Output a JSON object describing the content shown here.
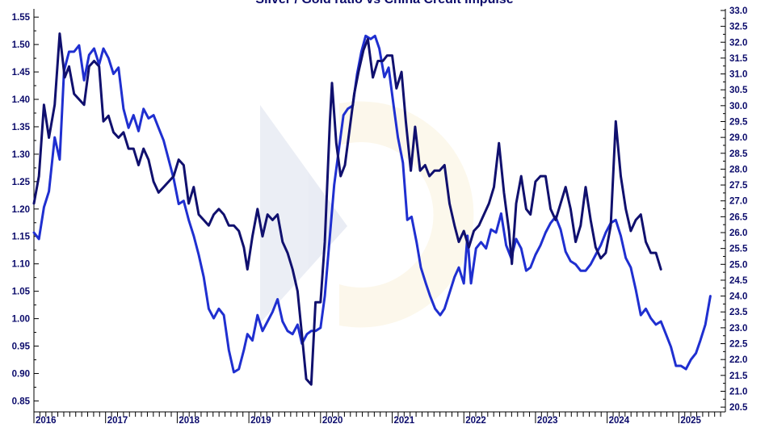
{
  "chart_data": {
    "type": "line",
    "title": "Silver / Gold ratio vs China Credit Impulse",
    "x": {
      "tick_labels": [
        "2016",
        "2017",
        "2018",
        "2019",
        "2020",
        "2021",
        "2022",
        "2023",
        "2024",
        "2025"
      ],
      "range": [
        2016.0,
        2025.65
      ]
    },
    "y_left": {
      "range": [
        0.83,
        1.565
      ],
      "ticks": [
        0.85,
        0.9,
        0.95,
        1.0,
        1.05,
        1.1,
        1.15,
        1.2,
        1.25,
        1.3,
        1.35,
        1.4,
        1.45,
        1.5,
        1.55
      ],
      "tick_labels": [
        "0.85",
        "0.90",
        "0.95",
        "1.00",
        "1.05",
        "1.10",
        "1.15",
        "1.20",
        "1.25",
        "1.30",
        "1.35",
        "1.40",
        "1.45",
        "1.50",
        "1.55"
      ]
    },
    "y_right": {
      "range": [
        20.35,
        33.05
      ],
      "ticks": [
        20.5,
        21.0,
        21.5,
        22.0,
        22.5,
        23.0,
        23.5,
        24.0,
        24.5,
        25.0,
        25.5,
        26.0,
        26.5,
        27.0,
        27.5,
        28.0,
        28.5,
        29.0,
        29.5,
        30.0,
        30.5,
        31.0,
        31.5,
        32.0,
        32.5,
        33.0
      ],
      "tick_labels": [
        "20.5",
        "21.0",
        "21.5",
        "22.0",
        "22.5",
        "23.0",
        "23.5",
        "24.0",
        "24.5",
        "25.0",
        "25.5",
        "26.0",
        "26.5",
        "27.0",
        "27.5",
        "28.0",
        "28.5",
        "29.0",
        "29.5",
        "30.0",
        "30.5",
        "31.0",
        "31.5",
        "32.0",
        "32.5",
        "33.0"
      ]
    },
    "grid": false,
    "legend": "none",
    "series": [
      {
        "axis": "left",
        "color": "#10106e",
        "points": [
          [
            2016.0,
            1.21
          ],
          [
            2016.07,
            1.26
          ],
          [
            2016.14,
            1.39
          ],
          [
            2016.21,
            1.33
          ],
          [
            2016.29,
            1.39
          ],
          [
            2016.36,
            1.52
          ],
          [
            2016.43,
            1.44
          ],
          [
            2016.49,
            1.46
          ],
          [
            2016.56,
            1.41
          ],
          [
            2016.63,
            1.4
          ],
          [
            2016.7,
            1.39
          ],
          [
            2016.77,
            1.46
          ],
          [
            2016.84,
            1.47
          ],
          [
            2016.91,
            1.46
          ],
          [
            2016.97,
            1.36
          ],
          [
            2017.04,
            1.37
          ],
          [
            2017.11,
            1.34
          ],
          [
            2017.18,
            1.33
          ],
          [
            2017.25,
            1.34
          ],
          [
            2017.32,
            1.31
          ],
          [
            2017.39,
            1.31
          ],
          [
            2017.46,
            1.28
          ],
          [
            2017.53,
            1.31
          ],
          [
            2017.6,
            1.29
          ],
          [
            2017.67,
            1.25
          ],
          [
            2017.74,
            1.23
          ],
          [
            2017.81,
            1.24
          ],
          [
            2017.88,
            1.25
          ],
          [
            2017.95,
            1.26
          ],
          [
            2018.02,
            1.29
          ],
          [
            2018.09,
            1.28
          ],
          [
            2018.16,
            1.21
          ],
          [
            2018.23,
            1.24
          ],
          [
            2018.3,
            1.19
          ],
          [
            2018.37,
            1.18
          ],
          [
            2018.44,
            1.17
          ],
          [
            2018.51,
            1.19
          ],
          [
            2018.58,
            1.2
          ],
          [
            2018.65,
            1.19
          ],
          [
            2018.72,
            1.17
          ],
          [
            2018.79,
            1.17
          ],
          [
            2018.86,
            1.16
          ],
          [
            2018.93,
            1.13
          ],
          [
            2018.98,
            1.09
          ],
          [
            2019.05,
            1.15
          ],
          [
            2019.12,
            1.2
          ],
          [
            2019.19,
            1.15
          ],
          [
            2019.26,
            1.19
          ],
          [
            2019.33,
            1.18
          ],
          [
            2019.4,
            1.19
          ],
          [
            2019.47,
            1.14
          ],
          [
            2019.54,
            1.12
          ],
          [
            2019.61,
            1.09
          ],
          [
            2019.68,
            1.05
          ],
          [
            2019.74,
            0.97
          ],
          [
            2019.8,
            0.89
          ],
          [
            2019.87,
            0.88
          ],
          [
            2019.93,
            1.03
          ],
          [
            2020.0,
            1.03
          ],
          [
            2020.06,
            1.14
          ],
          [
            2020.13,
            1.36
          ],
          [
            2020.16,
            1.43
          ],
          [
            2020.22,
            1.32
          ],
          [
            2020.28,
            1.26
          ],
          [
            2020.34,
            1.28
          ],
          [
            2020.41,
            1.35
          ],
          [
            2020.47,
            1.41
          ],
          [
            2020.53,
            1.45
          ],
          [
            2020.6,
            1.49
          ],
          [
            2020.66,
            1.51
          ],
          [
            2020.73,
            1.44
          ],
          [
            2020.8,
            1.47
          ],
          [
            2020.87,
            1.47
          ],
          [
            2020.93,
            1.48
          ],
          [
            2021.0,
            1.48
          ],
          [
            2021.06,
            1.42
          ],
          [
            2021.13,
            1.45
          ],
          [
            2021.19,
            1.36
          ],
          [
            2021.26,
            1.27
          ],
          [
            2021.32,
            1.35
          ],
          [
            2021.39,
            1.27
          ],
          [
            2021.46,
            1.28
          ],
          [
            2021.52,
            1.26
          ],
          [
            2021.59,
            1.27
          ],
          [
            2021.66,
            1.27
          ],
          [
            2021.73,
            1.28
          ],
          [
            2021.8,
            1.21
          ],
          [
            2021.87,
            1.17
          ],
          [
            2021.93,
            1.14
          ],
          [
            2022.0,
            1.16
          ],
          [
            2022.07,
            1.13
          ],
          [
            2022.14,
            1.16
          ],
          [
            2022.21,
            1.17
          ],
          [
            2022.28,
            1.19
          ],
          [
            2022.35,
            1.21
          ],
          [
            2022.42,
            1.24
          ],
          [
            2022.49,
            1.32
          ],
          [
            2022.56,
            1.23
          ],
          [
            2022.63,
            1.16
          ],
          [
            2022.67,
            1.1
          ],
          [
            2022.73,
            1.21
          ],
          [
            2022.8,
            1.26
          ],
          [
            2022.87,
            1.2
          ],
          [
            2022.93,
            1.19
          ],
          [
            2023.0,
            1.25
          ],
          [
            2023.07,
            1.26
          ],
          [
            2023.14,
            1.26
          ],
          [
            2023.21,
            1.2
          ],
          [
            2023.28,
            1.18
          ],
          [
            2023.35,
            1.21
          ],
          [
            2023.42,
            1.24
          ],
          [
            2023.49,
            1.2
          ],
          [
            2023.56,
            1.14
          ],
          [
            2023.63,
            1.17
          ],
          [
            2023.7,
            1.24
          ],
          [
            2023.77,
            1.18
          ],
          [
            2023.84,
            1.13
          ],
          [
            2023.91,
            1.11
          ],
          [
            2023.98,
            1.12
          ],
          [
            2024.05,
            1.17
          ],
          [
            2024.12,
            1.36
          ],
          [
            2024.19,
            1.26
          ],
          [
            2024.26,
            1.2
          ],
          [
            2024.33,
            1.16
          ],
          [
            2024.4,
            1.18
          ],
          [
            2024.47,
            1.19
          ],
          [
            2024.54,
            1.14
          ],
          [
            2024.61,
            1.12
          ],
          [
            2024.68,
            1.12
          ],
          [
            2024.75,
            1.09
          ]
        ]
      },
      {
        "axis": "right",
        "color": "#1f2fd0",
        "points": [
          [
            2016.0,
            26.0
          ],
          [
            2016.07,
            25.8
          ],
          [
            2016.14,
            26.8
          ],
          [
            2016.21,
            27.3
          ],
          [
            2016.29,
            29.0
          ],
          [
            2016.36,
            28.3
          ],
          [
            2016.42,
            31.1
          ],
          [
            2016.49,
            31.7
          ],
          [
            2016.56,
            31.7
          ],
          [
            2016.63,
            31.9
          ],
          [
            2016.7,
            30.8
          ],
          [
            2016.77,
            31.6
          ],
          [
            2016.84,
            31.8
          ],
          [
            2016.91,
            31.3
          ],
          [
            2016.97,
            31.8
          ],
          [
            2017.04,
            31.5
          ],
          [
            2017.11,
            31.0
          ],
          [
            2017.18,
            31.2
          ],
          [
            2017.25,
            29.9
          ],
          [
            2017.32,
            29.3
          ],
          [
            2017.39,
            29.7
          ],
          [
            2017.46,
            29.2
          ],
          [
            2017.53,
            29.9
          ],
          [
            2017.6,
            29.6
          ],
          [
            2017.67,
            29.7
          ],
          [
            2017.74,
            29.3
          ],
          [
            2017.81,
            28.9
          ],
          [
            2017.88,
            28.3
          ],
          [
            2017.95,
            27.7
          ],
          [
            2018.02,
            26.9
          ],
          [
            2018.09,
            27.0
          ],
          [
            2018.16,
            26.4
          ],
          [
            2018.23,
            25.9
          ],
          [
            2018.3,
            25.3
          ],
          [
            2018.37,
            24.6
          ],
          [
            2018.44,
            23.6
          ],
          [
            2018.51,
            23.3
          ],
          [
            2018.58,
            23.6
          ],
          [
            2018.65,
            23.4
          ],
          [
            2018.72,
            22.3
          ],
          [
            2018.79,
            21.6
          ],
          [
            2018.86,
            21.7
          ],
          [
            2018.93,
            22.3
          ],
          [
            2018.98,
            22.8
          ],
          [
            2019.05,
            22.6
          ],
          [
            2019.12,
            23.4
          ],
          [
            2019.19,
            22.9
          ],
          [
            2019.26,
            23.2
          ],
          [
            2019.33,
            23.5
          ],
          [
            2019.4,
            23.9
          ],
          [
            2019.47,
            23.2
          ],
          [
            2019.54,
            22.9
          ],
          [
            2019.61,
            22.8
          ],
          [
            2019.68,
            23.1
          ],
          [
            2019.74,
            22.5
          ],
          [
            2019.81,
            22.8
          ],
          [
            2019.87,
            22.9
          ],
          [
            2019.93,
            22.9
          ],
          [
            2020.0,
            23.0
          ],
          [
            2020.06,
            24.0
          ],
          [
            2020.13,
            25.9
          ],
          [
            2020.19,
            27.5
          ],
          [
            2020.26,
            28.7
          ],
          [
            2020.32,
            29.7
          ],
          [
            2020.38,
            29.9
          ],
          [
            2020.45,
            30.0
          ],
          [
            2020.51,
            31.0
          ],
          [
            2020.57,
            31.7
          ],
          [
            2020.63,
            32.2
          ],
          [
            2020.7,
            32.1
          ],
          [
            2020.76,
            32.2
          ],
          [
            2020.82,
            31.8
          ],
          [
            2020.89,
            30.9
          ],
          [
            2020.95,
            31.2
          ],
          [
            2021.02,
            30.0
          ],
          [
            2021.08,
            29.0
          ],
          [
            2021.15,
            28.2
          ],
          [
            2021.21,
            26.4
          ],
          [
            2021.27,
            26.5
          ],
          [
            2021.34,
            25.7
          ],
          [
            2021.4,
            24.9
          ],
          [
            2021.47,
            24.4
          ],
          [
            2021.53,
            24.0
          ],
          [
            2021.6,
            23.6
          ],
          [
            2021.67,
            23.4
          ],
          [
            2021.73,
            23.6
          ],
          [
            2021.8,
            24.1
          ],
          [
            2021.87,
            24.6
          ],
          [
            2021.93,
            24.9
          ],
          [
            2022.0,
            24.4
          ],
          [
            2022.05,
            25.9
          ],
          [
            2022.1,
            24.4
          ],
          [
            2022.17,
            25.5
          ],
          [
            2022.24,
            25.7
          ],
          [
            2022.31,
            25.5
          ],
          [
            2022.38,
            26.1
          ],
          [
            2022.45,
            26.0
          ],
          [
            2022.52,
            26.6
          ],
          [
            2022.59,
            25.6
          ],
          [
            2022.66,
            25.2
          ],
          [
            2022.73,
            25.8
          ],
          [
            2022.8,
            25.5
          ],
          [
            2022.87,
            24.8
          ],
          [
            2022.93,
            24.9
          ],
          [
            2023.0,
            25.3
          ],
          [
            2023.07,
            25.6
          ],
          [
            2023.14,
            26.0
          ],
          [
            2023.21,
            26.3
          ],
          [
            2023.28,
            26.5
          ],
          [
            2023.35,
            26.1
          ],
          [
            2023.42,
            25.4
          ],
          [
            2023.49,
            25.1
          ],
          [
            2023.56,
            25.0
          ],
          [
            2023.63,
            24.8
          ],
          [
            2023.7,
            24.8
          ],
          [
            2023.77,
            25.0
          ],
          [
            2023.84,
            25.3
          ],
          [
            2023.91,
            25.6
          ],
          [
            2023.98,
            26.0
          ],
          [
            2024.05,
            26.3
          ],
          [
            2024.12,
            26.4
          ],
          [
            2024.19,
            25.9
          ],
          [
            2024.26,
            25.2
          ],
          [
            2024.33,
            24.9
          ],
          [
            2024.4,
            24.2
          ],
          [
            2024.47,
            23.4
          ],
          [
            2024.54,
            23.6
          ],
          [
            2024.61,
            23.3
          ],
          [
            2024.68,
            23.1
          ],
          [
            2024.75,
            23.2
          ],
          [
            2024.82,
            22.8
          ],
          [
            2024.89,
            22.4
          ],
          [
            2024.96,
            21.8
          ],
          [
            2025.03,
            21.8
          ],
          [
            2025.1,
            21.7
          ],
          [
            2025.17,
            22.0
          ],
          [
            2025.24,
            22.2
          ],
          [
            2025.3,
            22.6
          ],
          [
            2025.37,
            23.1
          ],
          [
            2025.44,
            24.0
          ]
        ]
      }
    ]
  }
}
